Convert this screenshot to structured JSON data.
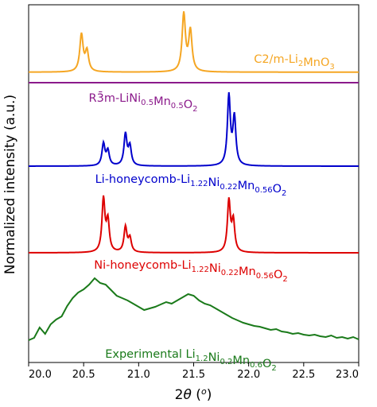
{
  "chart_data": {
    "type": "line",
    "xlabel": "2θ (o)",
    "ylabel": "Normalized intensity (a.u.)",
    "xlim": [
      20.0,
      23.0
    ],
    "xticks": [
      20.0,
      20.5,
      21.0,
      21.5,
      22.0,
      22.5,
      23.0
    ],
    "xtick_labels": [
      "20.0",
      "20.5",
      "21.0",
      "21.5",
      "22.0",
      "22.5",
      "23.0"
    ],
    "grid": false,
    "series": [
      {
        "key": "li2mno3",
        "name": "C2/m-Li2MnO3",
        "label_parts": [
          {
            "t": "C2/m-Li",
            "s": ""
          },
          {
            "t": "2",
            "s": "sub"
          },
          {
            "t": "MnO",
            "s": ""
          },
          {
            "t": "3",
            "s": "sub"
          }
        ],
        "color": "#f5a623",
        "baseline": 0.05,
        "peaks": [
          [
            20.48,
            0.55,
            0.018
          ],
          [
            20.53,
            0.3,
            0.018
          ],
          [
            21.41,
            0.85,
            0.018
          ],
          [
            21.47,
            0.6,
            0.018
          ]
        ]
      },
      {
        "key": "r3m",
        "name": "R3̄m-LiNi0.5Mn0.5O2",
        "label_parts": [
          {
            "t": "R",
            "s": ""
          },
          {
            "t": "3̄",
            "s": ""
          },
          {
            "t": "m-LiNi",
            "s": ""
          },
          {
            "t": "0.5",
            "s": "sub"
          },
          {
            "t": "Mn",
            "s": ""
          },
          {
            "t": "0.5",
            "s": "sub"
          },
          {
            "t": "O",
            "s": ""
          },
          {
            "t": "2",
            "s": "sub"
          }
        ],
        "color": "#8b1a8b",
        "baseline": 0.0,
        "peaks": []
      },
      {
        "key": "li_honeycomb",
        "name": "Li-honeycomb-Li1.22Ni0.22Mn0.56O2",
        "label_parts": [
          {
            "t": "Li-honeycomb-Li",
            "s": ""
          },
          {
            "t": "1.22",
            "s": "sub"
          },
          {
            "t": "Ni",
            "s": ""
          },
          {
            "t": "0.22",
            "s": "sub"
          },
          {
            "t": "Mn",
            "s": ""
          },
          {
            "t": "0.56",
            "s": "sub"
          },
          {
            "t": "O",
            "s": ""
          },
          {
            "t": "2",
            "s": "sub"
          }
        ],
        "color": "#0000cc",
        "baseline": 0.0,
        "peaks": [
          [
            20.68,
            0.3,
            0.016
          ],
          [
            20.72,
            0.2,
            0.016
          ],
          [
            20.88,
            0.43,
            0.016
          ],
          [
            20.92,
            0.26,
            0.016
          ],
          [
            21.82,
            0.95,
            0.016
          ],
          [
            21.87,
            0.65,
            0.016
          ]
        ]
      },
      {
        "key": "ni_honeycomb",
        "name": "Ni-honeycomb-Li1.22Ni0.22Mn0.56O2",
        "label_parts": [
          {
            "t": "Ni-honeycomb-Li",
            "s": ""
          },
          {
            "t": "1.22",
            "s": "sub"
          },
          {
            "t": "Ni",
            "s": ""
          },
          {
            "t": "0.22",
            "s": "sub"
          },
          {
            "t": "Mn",
            "s": ""
          },
          {
            "t": "0.56",
            "s": "sub"
          },
          {
            "t": "O",
            "s": ""
          },
          {
            "t": "2",
            "s": "sub"
          }
        ],
        "color": "#dd0000",
        "baseline": 0.0,
        "peaks": [
          [
            20.68,
            0.95,
            0.016
          ],
          [
            20.72,
            0.55,
            0.016
          ],
          [
            20.88,
            0.45,
            0.016
          ],
          [
            20.92,
            0.25,
            0.016
          ],
          [
            21.82,
            0.92,
            0.016
          ],
          [
            21.86,
            0.55,
            0.016
          ]
        ]
      },
      {
        "key": "experimental",
        "name": "Experimental Li1.2Ni0.2Mn0.6O2",
        "label_parts": [
          {
            "t": "Experimental Li",
            "s": ""
          },
          {
            "t": "1.2",
            "s": "sub"
          },
          {
            "t": "Ni",
            "s": ""
          },
          {
            "t": "0.2",
            "s": "sub"
          },
          {
            "t": "Mn",
            "s": ""
          },
          {
            "t": "0.6",
            "s": "sub"
          },
          {
            "t": "O",
            "s": ""
          },
          {
            "t": "2",
            "s": "sub"
          }
        ],
        "color": "#1a7a1a",
        "x": [
          20.0,
          20.05,
          20.1,
          20.15,
          20.2,
          20.25,
          20.3,
          20.35,
          20.4,
          20.45,
          20.5,
          20.55,
          20.6,
          20.65,
          20.7,
          20.75,
          20.8,
          20.85,
          20.9,
          20.95,
          21.0,
          21.05,
          21.1,
          21.15,
          21.2,
          21.25,
          21.3,
          21.35,
          21.4,
          21.45,
          21.5,
          21.55,
          21.6,
          21.65,
          21.7,
          21.75,
          21.8,
          21.85,
          21.9,
          21.95,
          22.0,
          22.05,
          22.1,
          22.15,
          22.2,
          22.25,
          22.3,
          22.35,
          22.4,
          22.45,
          22.5,
          22.55,
          22.6,
          22.65,
          22.7,
          22.75,
          22.8,
          22.85,
          22.9,
          22.95,
          23.0
        ],
        "y": [
          0.02,
          0.05,
          0.18,
          0.1,
          0.22,
          0.28,
          0.32,
          0.45,
          0.55,
          0.62,
          0.66,
          0.72,
          0.8,
          0.74,
          0.72,
          0.65,
          0.58,
          0.55,
          0.52,
          0.48,
          0.44,
          0.4,
          0.42,
          0.44,
          0.47,
          0.5,
          0.48,
          0.52,
          0.56,
          0.6,
          0.58,
          0.52,
          0.48,
          0.46,
          0.42,
          0.38,
          0.34,
          0.3,
          0.27,
          0.24,
          0.22,
          0.2,
          0.19,
          0.17,
          0.15,
          0.16,
          0.13,
          0.12,
          0.1,
          0.11,
          0.09,
          0.08,
          0.09,
          0.07,
          0.06,
          0.08,
          0.05,
          0.06,
          0.04,
          0.06,
          0.03
        ]
      }
    ]
  }
}
